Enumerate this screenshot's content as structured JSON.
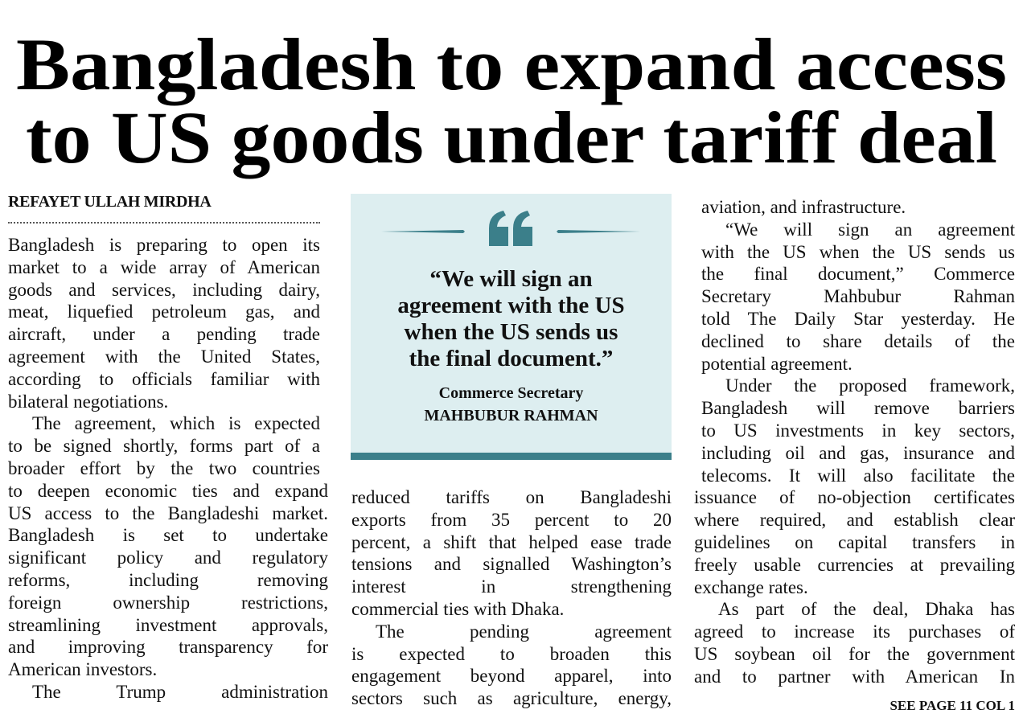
{
  "headline": [
    "Bangladesh to expand access",
    "to US goods under tariff deal"
  ],
  "byline": "REFAYET ULLAH MIRDHA",
  "pull_quote": {
    "quote": [
      "“We will sign an",
      "agreement with the US",
      "when the US sends us",
      "the final document.”"
    ],
    "attribution": [
      "Commerce Secretary",
      "MAHBUBUR RAHMAN"
    ]
  },
  "columns": [
    {
      "paragraphs": [
        [
          "Bangladesh is preparing to open its",
          "market to a wide array of American",
          "goods and services, including dairy,",
          "meat, liquefied petroleum gas, and",
          "aircraft, under a pending trade",
          "agreement with the United States,",
          "according to officials familiar with",
          "bilateral negotiations."
        ],
        [
          "The agreement, which is expected",
          "to be signed shortly, forms part of a",
          "broader effort by the two countries",
          "to deepen economic ties and expand",
          "US access to the Bangladeshi market.",
          "Bangladesh is set to undertake",
          "significant policy and regulatory",
          "reforms, including removing",
          "foreign ownership restrictions,",
          "streamlining investment approvals,",
          "and improving transparency for",
          "American investors."
        ],
        [
          "The Trump administration"
        ]
      ]
    },
    {
      "paragraphs": [
        [
          "reduced tariffs on Bangladeshi",
          "exports from 35 percent to 20",
          "percent, a shift that helped ease trade",
          "tensions and signalled Washington’s",
          "interest in strengthening",
          "commercial ties with Dhaka."
        ],
        [
          "The pending agreement",
          "is expected to broaden this",
          "engagement beyond apparel, into",
          "sectors such as agriculture, energy,"
        ]
      ]
    },
    {
      "paragraphs": [
        [
          "aviation, and infrastructure."
        ],
        [
          "“We will sign an agreement",
          "with the US when the US sends us",
          "the final document,” Commerce",
          "Secretary Mahbubur Rahman",
          "told The Daily Star yesterday. He",
          "declined to share details of the",
          "potential agreement."
        ],
        [
          "Under the proposed framework,",
          "Bangladesh will remove barriers",
          "to US investments in key sectors,",
          "including oil and gas, insurance and",
          "telecoms. It will also facilitate the",
          "issuance of no-objection certificates",
          "where required, and establish clear",
          "guidelines on capital transfers in",
          "freely usable currencies at prevailing",
          "exchange rates."
        ],
        [
          "As part of the deal, Dhaka has",
          "agreed to increase its purchases of",
          "US soybean oil for the government",
          "and to partner with American In"
        ]
      ]
    }
  ],
  "jump": "SEE PAGE 11 COL 1"
}
